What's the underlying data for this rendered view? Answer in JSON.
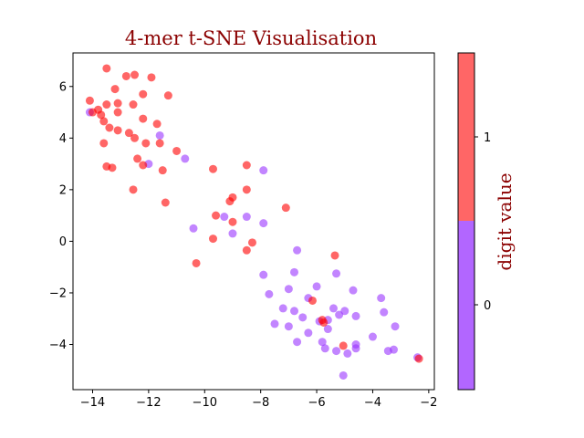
{
  "chart_data": {
    "type": "scatter",
    "title": "4-mer t-SNE Visualisation",
    "xlabel": "",
    "ylabel": "",
    "xlim": [
      -14.7,
      -1.8
    ],
    "ylim": [
      -5.75,
      7.3
    ],
    "x_ticks": [
      -14,
      -12,
      -10,
      -8,
      -6,
      -4,
      -2
    ],
    "x_tick_labels": [
      "−14",
      "−12",
      "−10",
      "−8",
      "−6",
      "−4",
      "−2"
    ],
    "y_ticks": [
      -4,
      -2,
      0,
      2,
      4,
      6
    ],
    "y_tick_labels": [
      "−4",
      "−2",
      "0",
      "2",
      "4",
      "6"
    ],
    "grid": false,
    "colorbar": {
      "label": "digit value",
      "ticks": [
        "0",
        "1"
      ],
      "colors": {
        "0": "#b266ff",
        "1": "#ff6666"
      }
    },
    "series": [
      {
        "name": "0",
        "color": "#9933ff",
        "points": [
          [
            -14.1,
            5.0
          ],
          [
            -11.6,
            4.1
          ],
          [
            -12.0,
            3.0
          ],
          [
            -10.7,
            3.2
          ],
          [
            -7.9,
            2.75
          ],
          [
            -9.3,
            0.95
          ],
          [
            -8.5,
            0.95
          ],
          [
            -10.4,
            0.5
          ],
          [
            -9.0,
            0.3
          ],
          [
            -7.9,
            0.7
          ],
          [
            -6.7,
            -0.35
          ],
          [
            -5.3,
            -1.25
          ],
          [
            -6.8,
            -1.2
          ],
          [
            -7.9,
            -1.3
          ],
          [
            -7.7,
            -2.05
          ],
          [
            -7.0,
            -1.85
          ],
          [
            -6.0,
            -1.75
          ],
          [
            -4.7,
            -1.9
          ],
          [
            -6.3,
            -2.2
          ],
          [
            -7.2,
            -2.6
          ],
          [
            -6.8,
            -2.7
          ],
          [
            -5.4,
            -2.6
          ],
          [
            -5.0,
            -2.7
          ],
          [
            -5.2,
            -2.85
          ],
          [
            -4.6,
            -2.9
          ],
          [
            -6.5,
            -2.95
          ],
          [
            -7.5,
            -3.2
          ],
          [
            -7.0,
            -3.3
          ],
          [
            -5.6,
            -3.05
          ],
          [
            -5.6,
            -3.4
          ],
          [
            -6.3,
            -3.55
          ],
          [
            -4.0,
            -3.7
          ],
          [
            -5.8,
            -3.9
          ],
          [
            -6.7,
            -3.9
          ],
          [
            -4.6,
            -4.0
          ],
          [
            -4.6,
            -4.15
          ],
          [
            -5.7,
            -4.15
          ],
          [
            -5.3,
            -4.25
          ],
          [
            -4.9,
            -4.35
          ],
          [
            -3.2,
            -3.3
          ],
          [
            -3.6,
            -2.75
          ],
          [
            -3.7,
            -2.2
          ],
          [
            -3.45,
            -4.25
          ],
          [
            -3.25,
            -4.2
          ],
          [
            -5.05,
            -5.2
          ],
          [
            -2.4,
            -4.5
          ],
          [
            -5.9,
            -3.1
          ]
        ]
      },
      {
        "name": "1",
        "color": "#ff0000",
        "points": [
          [
            -13.5,
            6.7
          ],
          [
            -12.5,
            6.45
          ],
          [
            -12.8,
            6.4
          ],
          [
            -11.9,
            6.35
          ],
          [
            -13.2,
            5.9
          ],
          [
            -12.2,
            5.7
          ],
          [
            -11.3,
            5.65
          ],
          [
            -14.1,
            5.45
          ],
          [
            -13.5,
            5.3
          ],
          [
            -13.1,
            5.35
          ],
          [
            -12.55,
            5.3
          ],
          [
            -13.8,
            5.1
          ],
          [
            -14.0,
            5.0
          ],
          [
            -13.7,
            4.9
          ],
          [
            -13.1,
            5.0
          ],
          [
            -12.2,
            4.75
          ],
          [
            -13.6,
            4.65
          ],
          [
            -11.7,
            4.55
          ],
          [
            -13.4,
            4.4
          ],
          [
            -13.1,
            4.3
          ],
          [
            -12.7,
            4.2
          ],
          [
            -12.5,
            4.0
          ],
          [
            -13.6,
            3.8
          ],
          [
            -12.1,
            3.8
          ],
          [
            -11.6,
            3.8
          ],
          [
            -11.0,
            3.5
          ],
          [
            -12.4,
            3.2
          ],
          [
            -12.2,
            2.95
          ],
          [
            -13.5,
            2.9
          ],
          [
            -13.3,
            2.85
          ],
          [
            -11.5,
            2.75
          ],
          [
            -9.7,
            2.8
          ],
          [
            -8.5,
            2.95
          ],
          [
            -12.55,
            2.0
          ],
          [
            -8.5,
            2.0
          ],
          [
            -9.0,
            1.7
          ],
          [
            -9.1,
            1.55
          ],
          [
            -11.4,
            1.5
          ],
          [
            -7.1,
            1.3
          ],
          [
            -9.6,
            1.0
          ],
          [
            -9.0,
            0.75
          ],
          [
            -9.7,
            0.1
          ],
          [
            -8.3,
            -0.05
          ],
          [
            -8.5,
            -0.35
          ],
          [
            -10.3,
            -0.85
          ],
          [
            -5.35,
            -0.55
          ],
          [
            -6.15,
            -2.3
          ],
          [
            -5.8,
            -3.05
          ],
          [
            -5.75,
            -3.15
          ],
          [
            -5.05,
            -4.05
          ],
          [
            -2.35,
            -4.55
          ]
        ]
      }
    ]
  }
}
